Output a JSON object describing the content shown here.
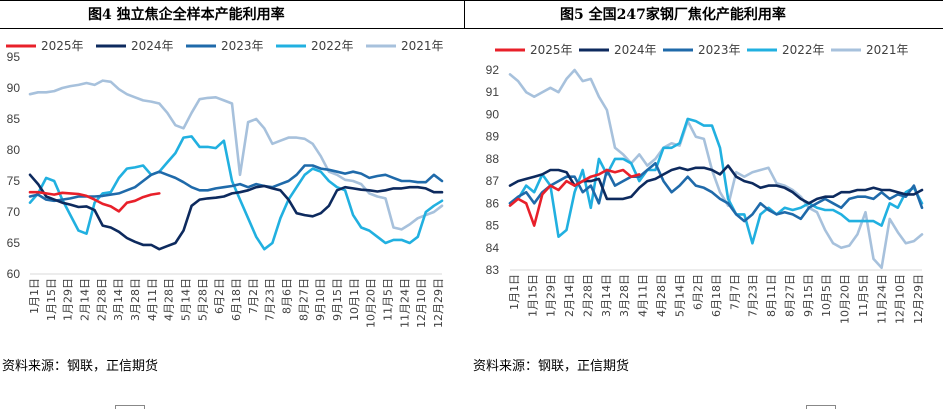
{
  "figures": [
    {
      "title": "图4   独立焦企全样本产能利用率",
      "source": "资料来源：钢联，正信期货"
    },
    {
      "title": "图5   全国247家钢厂焦化产能利用率",
      "source": "资料来源：钢联，正信期货"
    }
  ],
  "chart_data": [
    {
      "type": "line",
      "title": "独立焦企全样本产能利用率",
      "xlabel": "",
      "ylabel": "",
      "ylim": [
        60,
        95
      ],
      "yticks": [
        60,
        65,
        70,
        75,
        80,
        85,
        90,
        95
      ],
      "xtick_labels": [
        "1月1日",
        "1月15日",
        "1月29日",
        "2月14日",
        "2月28日",
        "3月14日",
        "3月28日",
        "4月11日",
        "4月28日",
        "5月14日",
        "5月28日",
        "6月2日",
        "6月18日",
        "7月2日",
        "7月23日",
        "8月6日",
        "8月27日",
        "9月10日",
        "9月15日",
        "10月1日",
        "10月20日",
        "11月5日",
        "11月24日",
        "12月10日",
        "12月29日"
      ],
      "x_range": [
        1,
        52
      ],
      "grid": false,
      "legend": "top",
      "series": [
        {
          "name": "2025年",
          "color": "#e8202a",
          "x": [
            1,
            2,
            3,
            4,
            5,
            6,
            7,
            8,
            9,
            10,
            11,
            12,
            13,
            14,
            15,
            16,
            17
          ],
          "values": [
            73.2,
            73.2,
            73.0,
            72.8,
            73.1,
            73.0,
            72.9,
            72.6,
            72.0,
            71.3,
            70.9,
            70.1,
            71.5,
            71.8,
            72.4,
            72.8,
            73.0
          ]
        },
        {
          "name": "2024年",
          "color": "#0d2a5e",
          "x": [
            1,
            2,
            3,
            4,
            5,
            6,
            7,
            8,
            9,
            10,
            11,
            12,
            13,
            14,
            15,
            16,
            17,
            18,
            19,
            20,
            21,
            22,
            23,
            24,
            25,
            26,
            27,
            28,
            29,
            30,
            31,
            32,
            33,
            34,
            35,
            36,
            37,
            38,
            39,
            40,
            41,
            42,
            43,
            44,
            45,
            46,
            47,
            48,
            49,
            50,
            51,
            52
          ],
          "values": [
            76,
            74.5,
            72.5,
            72,
            71.5,
            71.2,
            70.8,
            70.9,
            70.3,
            67.8,
            67.5,
            66.8,
            65.8,
            65.2,
            64.7,
            64.7,
            64,
            64.5,
            65,
            67,
            71,
            72,
            72.2,
            72.3,
            72.5,
            73,
            73.2,
            73.5,
            74,
            74.2,
            73.8,
            73.5,
            72,
            69.8,
            69.5,
            69.3,
            69.8,
            71,
            73.5,
            74,
            73.8,
            73.6,
            73.5,
            73.3,
            73.5,
            73.8,
            73.8,
            74,
            74,
            73.8,
            73.2,
            73.2
          ]
        },
        {
          "name": "2023年",
          "color": "#1f6aaa",
          "x": [
            1,
            2,
            3,
            4,
            5,
            6,
            7,
            8,
            9,
            10,
            11,
            12,
            13,
            14,
            15,
            16,
            17,
            18,
            19,
            20,
            21,
            22,
            23,
            24,
            25,
            26,
            27,
            28,
            29,
            30,
            31,
            32,
            33,
            34,
            35,
            36,
            37,
            38,
            39,
            40,
            41,
            42,
            43,
            44,
            45,
            46,
            47,
            48,
            49,
            50,
            51,
            52
          ],
          "values": [
            72.5,
            72.8,
            72.0,
            71.8,
            72,
            72.2,
            72.5,
            72.5,
            72.5,
            72.6,
            72.8,
            73.0,
            73.5,
            74,
            75,
            76,
            76.5,
            76,
            75.5,
            74.8,
            74,
            73.5,
            73.5,
            73.8,
            74,
            74.2,
            74.5,
            74,
            74.5,
            74.2,
            74,
            74.5,
            75,
            76,
            77.5,
            77.5,
            77,
            76.8,
            76.5,
            76.2,
            76.5,
            76.2,
            75.5,
            75.8,
            76,
            75.5,
            75,
            75,
            74.8,
            74.8,
            76,
            75
          ]
        },
        {
          "name": "2022年",
          "color": "#21b0e0",
          "x": [
            1,
            2,
            3,
            4,
            5,
            6,
            7,
            8,
            9,
            10,
            11,
            12,
            13,
            14,
            15,
            16,
            17,
            18,
            19,
            20,
            21,
            22,
            23,
            24,
            25,
            26,
            27,
            28,
            29,
            30,
            31,
            32,
            33,
            34,
            35,
            36,
            37,
            38,
            39,
            40,
            41,
            42,
            43,
            44,
            45,
            46,
            47,
            48,
            49,
            50,
            51,
            52
          ],
          "values": [
            71.5,
            73,
            75.5,
            75,
            72,
            69.5,
            67,
            66.5,
            71.5,
            73,
            73.2,
            75.5,
            77,
            77.2,
            77.5,
            76,
            76.5,
            78,
            79.5,
            82,
            82.2,
            80.5,
            80.5,
            80.3,
            81.5,
            75,
            72,
            69,
            66,
            64,
            65,
            69,
            72,
            74,
            76,
            77,
            76.5,
            75,
            74,
            73.5,
            69.5,
            67.5,
            67,
            66,
            65,
            65.5,
            65.5,
            65,
            66,
            70,
            71,
            71.8
          ]
        },
        {
          "name": "2021年",
          "color": "#a7c1dc",
          "x": [
            1,
            2,
            3,
            4,
            5,
            6,
            7,
            8,
            9,
            10,
            11,
            12,
            13,
            14,
            15,
            16,
            17,
            18,
            19,
            20,
            21,
            22,
            23,
            24,
            25,
            26,
            27,
            28,
            29,
            30,
            31,
            32,
            33,
            34,
            35,
            36,
            37,
            38,
            39,
            40,
            41,
            42,
            43,
            44,
            45,
            46,
            47,
            48,
            49,
            50,
            51,
            52
          ],
          "values": [
            89,
            89.3,
            89.3,
            89.5,
            90,
            90.3,
            90.5,
            90.8,
            90.5,
            91.2,
            91,
            89.8,
            89,
            88.5,
            88,
            87.8,
            87.5,
            86,
            84,
            83.5,
            86,
            88.2,
            88.4,
            88.5,
            88,
            87.5,
            76,
            84.5,
            85,
            83.5,
            81,
            81.5,
            82,
            82,
            81.8,
            81,
            79,
            76.5,
            76,
            75.2,
            75,
            74.5,
            73,
            72.5,
            72.2,
            67.5,
            67.2,
            68,
            69,
            69.5,
            70,
            71
          ]
        }
      ]
    },
    {
      "type": "line",
      "title": "全国247家钢厂焦化产能利用率",
      "xlabel": "",
      "ylabel": "",
      "ylim": [
        83,
        92
      ],
      "yticks": [
        83,
        84,
        85,
        86,
        87,
        88,
        89,
        90,
        91,
        92
      ],
      "xtick_labels": [
        "1月1日",
        "1月15日",
        "1月29日",
        "2月14日",
        "2月28日",
        "3月14日",
        "3月28日",
        "4月11日",
        "4月28日",
        "5月14日",
        "6月2日",
        "6月18日",
        "7月7日",
        "7月23日",
        "8月11日",
        "8月27日",
        "9月15日",
        "10月5日",
        "10月20日",
        "11月5日",
        "11月24日",
        "12月10日",
        "12月29日"
      ],
      "x_range": [
        1,
        52
      ],
      "grid": false,
      "legend": "top",
      "series": [
        {
          "name": "2025年",
          "color": "#e8202a",
          "x": [
            1,
            2,
            3,
            4,
            5,
            6,
            7,
            8,
            9,
            10,
            11,
            12,
            13,
            14,
            15,
            16,
            17
          ],
          "values": [
            85.9,
            86.2,
            86.0,
            85.0,
            86.4,
            86.8,
            86.6,
            87.0,
            86.8,
            87.0,
            87.2,
            87.3,
            87.5,
            87.4,
            87.5,
            87.2,
            87.3
          ]
        },
        {
          "name": "2024年",
          "color": "#0d2a5e",
          "x": [
            1,
            2,
            3,
            4,
            5,
            6,
            7,
            8,
            9,
            10,
            11,
            12,
            13,
            14,
            15,
            16,
            17,
            18,
            19,
            20,
            21,
            22,
            23,
            24,
            25,
            26,
            27,
            28,
            29,
            30,
            31,
            32,
            33,
            34,
            35,
            36,
            37,
            38,
            39,
            40,
            41,
            42,
            43,
            44,
            45,
            46,
            47,
            48,
            49,
            50,
            51,
            52
          ],
          "values": [
            86.8,
            87,
            87.1,
            87.2,
            87.3,
            87.5,
            87.5,
            87.4,
            86.8,
            87,
            87,
            87.1,
            86.2,
            86.2,
            86.2,
            86.3,
            86.7,
            87,
            87.1,
            87.3,
            87.5,
            87.6,
            87.5,
            87.6,
            87.6,
            87.5,
            87.3,
            87.7,
            87.2,
            87.0,
            86.9,
            86.7,
            86.8,
            86.8,
            86.7,
            86.5,
            86.2,
            86.0,
            86.2,
            86.3,
            86.3,
            86.5,
            86.5,
            86.6,
            86.6,
            86.7,
            86.6,
            86.6,
            86.5,
            86.4,
            86.4,
            86.6
          ]
        },
        {
          "name": "2023年",
          "color": "#1f6aaa",
          "x": [
            1,
            2,
            3,
            4,
            5,
            6,
            7,
            8,
            9,
            10,
            11,
            12,
            13,
            14,
            15,
            16,
            17,
            18,
            19,
            20,
            21,
            22,
            23,
            24,
            25,
            26,
            27,
            28,
            29,
            30,
            31,
            32,
            33,
            34,
            35,
            36,
            37,
            38,
            39,
            40,
            41,
            42,
            43,
            44,
            45,
            46,
            47,
            48,
            49,
            50,
            51,
            52
          ],
          "values": [
            86,
            86.3,
            86.5,
            86,
            86.5,
            86.8,
            87,
            87.2,
            87.2,
            86.5,
            86.8,
            86,
            87.5,
            86.8,
            87,
            87.2,
            87.2,
            87.5,
            87.8,
            87,
            86.5,
            86.8,
            87.2,
            86.8,
            86.7,
            86.5,
            86.2,
            86,
            85.5,
            85.2,
            85.5,
            86,
            85.7,
            85.5,
            85.6,
            85.5,
            85.3,
            85.8,
            86,
            86.2,
            86,
            85.8,
            86.2,
            86.3,
            86.3,
            86.2,
            86.5,
            86.2,
            86.4,
            86.3,
            86.8,
            85.8
          ]
        },
        {
          "name": "2022年",
          "color": "#21b0e0",
          "x": [
            1,
            2,
            3,
            4,
            5,
            6,
            7,
            8,
            9,
            10,
            11,
            12,
            13,
            14,
            15,
            16,
            17,
            18,
            19,
            20,
            21,
            22,
            23,
            24,
            25,
            26,
            27,
            28,
            29,
            30,
            31,
            32,
            33,
            34,
            35,
            36,
            37,
            38,
            39,
            40,
            41,
            42,
            43,
            44,
            45,
            46,
            47,
            48,
            49,
            50,
            51,
            52
          ],
          "values": [
            86,
            86.2,
            86.8,
            86.5,
            87.3,
            86.8,
            84.5,
            84.8,
            86.5,
            87.5,
            85.8,
            88,
            87.3,
            88,
            88,
            87.8,
            87,
            87.5,
            87.5,
            88.5,
            88.5,
            88.7,
            89.8,
            89.7,
            89.5,
            89.5,
            88.5,
            86.2,
            85.5,
            85.5,
            84.2,
            85.5,
            85.8,
            85.5,
            85.8,
            85.7,
            85.8,
            86,
            85.8,
            85.7,
            85.7,
            85.5,
            85.2,
            85.2,
            85.2,
            85.2,
            85,
            86,
            85.8,
            86.5,
            86.7,
            86
          ]
        },
        {
          "name": "2021年",
          "color": "#a7c1dc",
          "x": [
            1,
            2,
            3,
            4,
            5,
            6,
            7,
            8,
            9,
            10,
            11,
            12,
            13,
            14,
            15,
            16,
            17,
            18,
            19,
            20,
            21,
            22,
            23,
            24,
            25,
            26,
            27,
            28,
            29,
            30,
            31,
            32,
            33,
            34,
            35,
            36,
            37,
            38,
            39,
            40,
            41,
            42,
            43,
            44,
            45,
            46,
            47,
            48,
            49,
            50,
            51,
            52
          ],
          "values": [
            91.8,
            91.5,
            91,
            90.8,
            91,
            91.2,
            91,
            91.6,
            92,
            91.5,
            91.6,
            90.8,
            90.2,
            88.5,
            88.2,
            87.8,
            88.2,
            87.7,
            88,
            88.5,
            88.7,
            88.6,
            89.7,
            89,
            88.9,
            87.5,
            86.5,
            85.9,
            87.4,
            87.2,
            87.4,
            87.5,
            87.6,
            86.9,
            86.8,
            86.6,
            86.3,
            85.8,
            85.6,
            84.8,
            84.2,
            84.0,
            84.1,
            84.6,
            85.6,
            83.5,
            83.1,
            85.3,
            84.7,
            84.2,
            84.3,
            84.6
          ]
        }
      ]
    }
  ]
}
